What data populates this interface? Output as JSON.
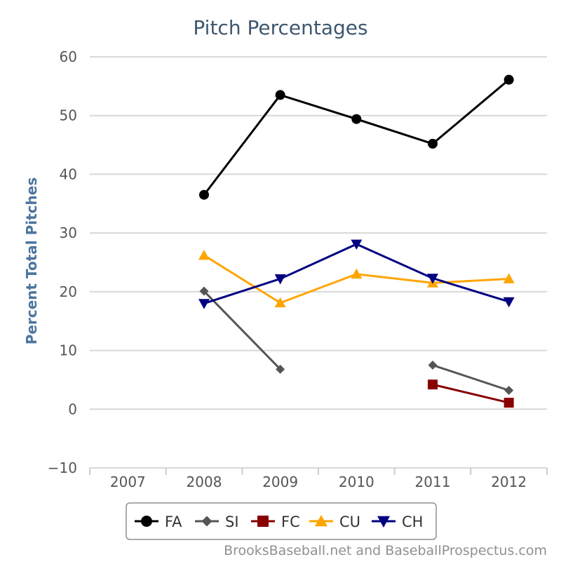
{
  "chart_data": {
    "type": "line",
    "title": "Pitch Percentages",
    "xlabel": "",
    "ylabel": "Percent Total Pitches",
    "categories": [
      "2007",
      "2008",
      "2009",
      "2010",
      "2011",
      "2012"
    ],
    "ylim": [
      -10,
      60
    ],
    "yticks": [
      -10,
      0,
      10,
      20,
      30,
      40,
      50,
      60
    ],
    "ytick_labels": [
      "−10",
      "0",
      "10",
      "20",
      "30",
      "40",
      "50",
      "60"
    ],
    "grid": true,
    "legend_position": "bottom-center",
    "series": [
      {
        "name": "FA",
        "color": "#000000",
        "marker": "circle",
        "values": [
          null,
          36.5,
          53.5,
          49.4,
          45.2,
          56.1
        ]
      },
      {
        "name": "SI",
        "color": "#555555",
        "marker": "diamond",
        "values": [
          null,
          20.1,
          6.8,
          null,
          7.5,
          3.2
        ]
      },
      {
        "name": "FC",
        "color": "#880000",
        "marker": "square",
        "values": [
          null,
          null,
          null,
          null,
          4.2,
          1.1
        ]
      },
      {
        "name": "CU",
        "color": "#ffa500",
        "marker": "triangle-up",
        "values": [
          null,
          26.2,
          18.1,
          23.0,
          21.5,
          22.2
        ]
      },
      {
        "name": "CH",
        "color": "#000080",
        "marker": "triangle-down",
        "values": [
          null,
          18.0,
          22.2,
          28.1,
          22.3,
          18.3
        ]
      }
    ]
  },
  "credit": "BrooksBaseball.net and BaseballProspectus.com"
}
